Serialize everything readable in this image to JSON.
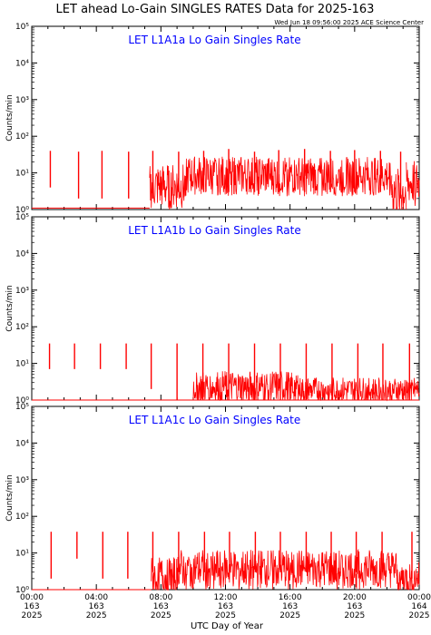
{
  "title": "LET ahead Lo-Gain SINGLES RATES Data for 2025-163",
  "timestamp": "Wed Jun 18 09:56:00 2025 ACE Science Center",
  "xlabel": "UTC Day of Year",
  "colors": {
    "data": "#ff0000",
    "panel_title": "#0000ff",
    "axes": "#000000"
  },
  "x_ticks": [
    {
      "time": "00:00",
      "day": "163",
      "year": "2025",
      "hour": 0
    },
    {
      "time": "04:00",
      "day": "163",
      "year": "2025",
      "hour": 4
    },
    {
      "time": "08:00",
      "day": "163",
      "year": "2025",
      "hour": 8
    },
    {
      "time": "12:00",
      "day": "163",
      "year": "2025",
      "hour": 12
    },
    {
      "time": "16:00",
      "day": "163",
      "year": "2025",
      "hour": 16
    },
    {
      "time": "20:00",
      "day": "163",
      "year": "2025",
      "hour": 20
    },
    {
      "time": "00:00",
      "day": "164",
      "year": "2025",
      "hour": 24
    }
  ],
  "chart_data": [
    {
      "type": "line",
      "title": "LET L1A1a Lo Gain Singles Rate",
      "ylabel": "Counts/min",
      "yscale": "log",
      "ylim": [
        1,
        100000
      ],
      "xlim_hours": [
        0,
        24
      ],
      "y_tick_labels": [
        "10⁰",
        "10¹",
        "10²",
        "10³",
        "10⁴",
        "10⁵"
      ],
      "spikes": [
        {
          "hour": 1.15,
          "low": 4,
          "high": 40
        },
        {
          "hour": 2.9,
          "low": 2,
          "high": 38
        },
        {
          "hour": 4.35,
          "low": 2,
          "high": 40
        },
        {
          "hour": 6.0,
          "low": 2,
          "high": 38
        },
        {
          "hour": 7.5,
          "low": 2,
          "high": 40
        },
        {
          "hour": 9.1,
          "low": 3,
          "high": 38
        },
        {
          "hour": 10.65,
          "low": 3,
          "high": 40
        },
        {
          "hour": 12.2,
          "low": 3,
          "high": 45
        },
        {
          "hour": 13.8,
          "low": 3,
          "high": 38
        },
        {
          "hour": 15.3,
          "low": 3,
          "high": 42
        },
        {
          "hour": 16.9,
          "low": 3,
          "high": 45
        },
        {
          "hour": 18.5,
          "low": 3,
          "high": 40
        },
        {
          "hour": 20.0,
          "low": 3,
          "high": 42
        },
        {
          "hour": 21.6,
          "low": 3,
          "high": 40
        },
        {
          "hour": 22.85,
          "low": 2,
          "high": 38
        }
      ],
      "noise_segments": [
        {
          "from": 7.3,
          "to": 9.5,
          "median": 4,
          "spread": 0.35
        },
        {
          "from": 9.5,
          "to": 22.3,
          "median": 8,
          "spread": 0.3
        },
        {
          "from": 22.3,
          "to": 23.2,
          "median": 3,
          "spread": 0.4
        },
        {
          "from": 23.2,
          "to": 24.0,
          "median": 5,
          "spread": 0.35
        }
      ],
      "baseline_hours": [
        0,
        7.3
      ],
      "baseline_value": 1.1
    },
    {
      "type": "line",
      "title": "LET L1A1b Lo Gain Singles Rate",
      "ylabel": "Counts/min",
      "yscale": "log",
      "ylim": [
        1,
        100000
      ],
      "xlim_hours": [
        0,
        24
      ],
      "y_tick_labels": [
        "10⁰",
        "10¹",
        "10²",
        "10³",
        "10⁴",
        "10⁵"
      ],
      "spikes": [
        {
          "hour": 1.1,
          "low": 7,
          "high": 35
        },
        {
          "hour": 2.65,
          "low": 7,
          "high": 35
        },
        {
          "hour": 4.25,
          "low": 7,
          "high": 35
        },
        {
          "hour": 5.85,
          "low": 7,
          "high": 35
        },
        {
          "hour": 7.4,
          "low": 2,
          "high": 35
        },
        {
          "hour": 9.0,
          "low": 1,
          "high": 35
        },
        {
          "hour": 10.6,
          "low": 1,
          "high": 35
        },
        {
          "hour": 12.2,
          "low": 1,
          "high": 35
        },
        {
          "hour": 13.8,
          "low": 1,
          "high": 35
        },
        {
          "hour": 15.4,
          "low": 1,
          "high": 35
        },
        {
          "hour": 17.0,
          "low": 1,
          "high": 35
        },
        {
          "hour": 18.6,
          "low": 1,
          "high": 35
        },
        {
          "hour": 20.2,
          "low": 1,
          "high": 35
        },
        {
          "hour": 21.75,
          "low": 1,
          "high": 35
        },
        {
          "hour": 23.4,
          "low": 1,
          "high": 35
        }
      ],
      "noise_segments": [
        {
          "from": 10.0,
          "to": 16.5,
          "median": 2.2,
          "spread": 0.25
        },
        {
          "from": 16.5,
          "to": 24.0,
          "median": 1.8,
          "spread": 0.2
        }
      ],
      "baseline_hours": [
        0,
        24
      ],
      "baseline_value": 1.0
    },
    {
      "type": "line",
      "title": "LET L1A1c Lo Gain Singles Rate",
      "ylabel": "Counts/min",
      "yscale": "log",
      "ylim": [
        1,
        100000
      ],
      "xlim_hours": [
        0,
        24
      ],
      "y_tick_labels": [
        "10⁰",
        "10¹",
        "10²",
        "10³",
        "10⁴",
        "10⁵"
      ],
      "spikes": [
        {
          "hour": 1.2,
          "low": 2,
          "high": 38
        },
        {
          "hour": 2.8,
          "low": 7,
          "high": 38
        },
        {
          "hour": 4.4,
          "low": 2,
          "high": 38
        },
        {
          "hour": 5.95,
          "low": 2,
          "high": 38
        },
        {
          "hour": 7.5,
          "low": 3,
          "high": 38
        },
        {
          "hour": 9.1,
          "low": 3,
          "high": 38
        },
        {
          "hour": 10.7,
          "low": 3,
          "high": 38
        },
        {
          "hour": 12.25,
          "low": 3,
          "high": 38
        },
        {
          "hour": 13.85,
          "low": 3,
          "high": 38
        },
        {
          "hour": 15.4,
          "low": 3,
          "high": 38
        },
        {
          "hour": 17.0,
          "low": 3,
          "high": 38
        },
        {
          "hour": 18.55,
          "low": 3,
          "high": 38
        },
        {
          "hour": 20.1,
          "low": 3,
          "high": 38
        },
        {
          "hour": 21.7,
          "low": 3,
          "high": 38
        },
        {
          "hour": 23.55,
          "low": 2,
          "high": 38
        }
      ],
      "noise_segments": [
        {
          "from": 7.4,
          "to": 9.0,
          "median": 2.2,
          "spread": 0.3
        },
        {
          "from": 9.0,
          "to": 22.6,
          "median": 3.5,
          "spread": 0.3
        },
        {
          "from": 22.6,
          "to": 24.0,
          "median": 2.0,
          "spread": 0.25
        }
      ],
      "baseline_hours": [
        0,
        7.4
      ],
      "baseline_value": 1.0
    }
  ]
}
